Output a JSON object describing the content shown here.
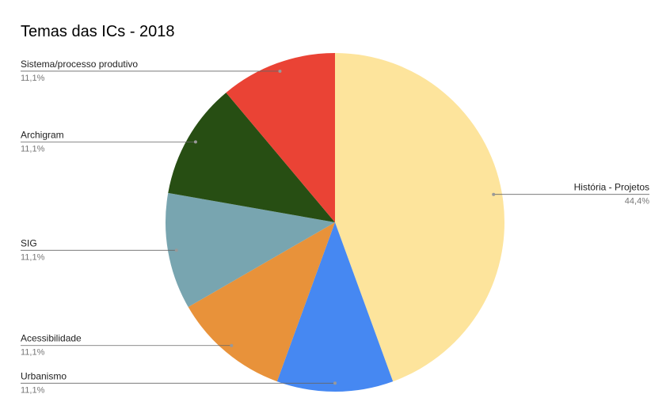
{
  "chart_data": {
    "type": "pie",
    "title": "Temas das ICs - 2018",
    "categories": [
      "História - Projetos",
      "Urbanismo",
      "Acessibilidade",
      "SIG",
      "Archigram",
      "Sistema/processo produtivo"
    ],
    "values": [
      44.4,
      11.1,
      11.1,
      11.1,
      11.1,
      11.1
    ],
    "value_labels": [
      "44,4%",
      "11,1%",
      "11,1%",
      "11,1%",
      "11,1%",
      "11,1%"
    ],
    "colors": [
      "#fde49c",
      "#4688f2",
      "#e8923a",
      "#78a5b0",
      "#274e13",
      "#ea4335"
    ]
  }
}
